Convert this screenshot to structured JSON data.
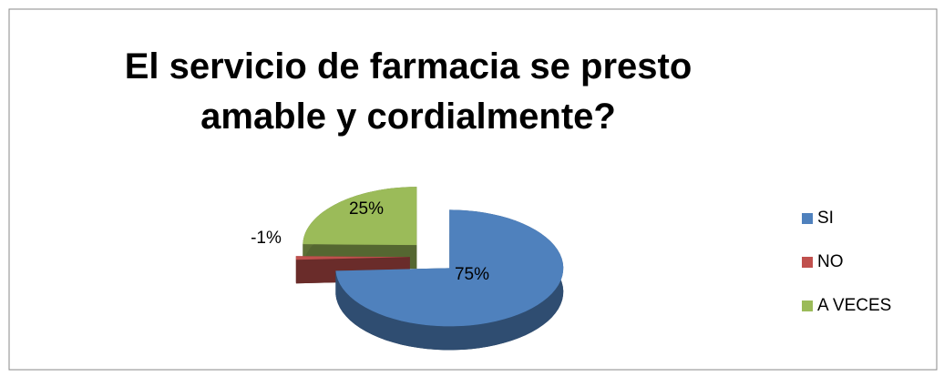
{
  "chart_data": {
    "type": "pie3d",
    "title": "El servicio de farmacia se presto amable y cordialmente?",
    "categories": [
      "SI",
      "NO",
      "A VECES"
    ],
    "values": [
      75,
      -1,
      25
    ],
    "value_labels": [
      "75%",
      "-1%",
      "25%"
    ],
    "colors": [
      "#4f81bd",
      "#c0504d",
      "#9bbb59"
    ],
    "legend": "right"
  }
}
